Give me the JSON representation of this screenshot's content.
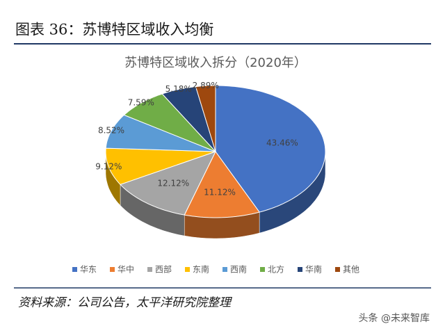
{
  "header": {
    "title": "图表 36：苏博特区域收入均衡"
  },
  "chart_data": {
    "type": "pie",
    "title": "苏博特区域收入拆分（2020年）",
    "categories": [
      "华东",
      "华中",
      "西部",
      "东南",
      "西南",
      "北方",
      "华南",
      "其他"
    ],
    "values": [
      43.46,
      11.12,
      12.12,
      9.12,
      8.52,
      7.59,
      5.18,
      2.89
    ],
    "value_labels": [
      "43.46%",
      "11.12%",
      "12.12%",
      "9.12%",
      "8.52%",
      "7.59%",
      "5.18%",
      "2.89%"
    ],
    "colors": [
      "#4472c4",
      "#ed7d31",
      "#a5a5a5",
      "#ffc000",
      "#5b9bd5",
      "#70ad47",
      "#264478",
      "#9e480e"
    ],
    "legend": "bottom"
  },
  "source": "资料来源：公司公告，太平洋研究院整理",
  "watermark": "头条 @未来智库"
}
